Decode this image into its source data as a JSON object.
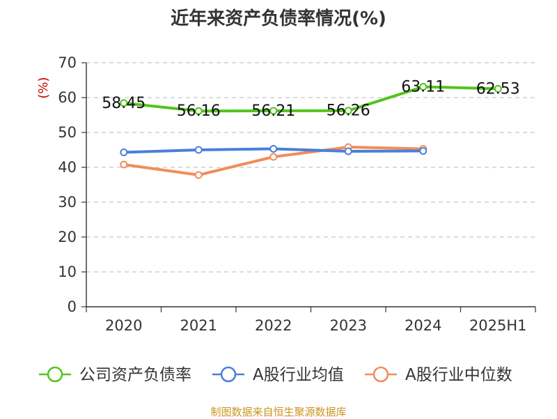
{
  "title": "近年来资产负债率情况(%)",
  "source": "制图数据来自恒生聚源数据库",
  "chart_data": {
    "type": "line",
    "title": "近年来资产负债率情况(%)",
    "ylabel": "(%)",
    "xlabel": "",
    "categories": [
      "2020",
      "2021",
      "2022",
      "2023",
      "2024",
      "2025H1"
    ],
    "ylim": [
      0,
      70
    ],
    "yticks": [
      0,
      10,
      20,
      30,
      40,
      50,
      60,
      70
    ],
    "grid": "horizontal dashed",
    "legend_position": "bottom",
    "series": [
      {
        "name": "公司资产负债率",
        "color": "#52c41a",
        "values": [
          58.45,
          56.16,
          56.21,
          56.26,
          63.11,
          62.53
        ],
        "labels": [
          "58.45",
          "56.16",
          "56.21",
          "56.26",
          "63.11",
          "62.53"
        ]
      },
      {
        "name": "A股行业均值",
        "color": "#4a7fd9",
        "values": [
          44.3,
          45.0,
          45.3,
          44.6,
          44.7,
          null
        ]
      },
      {
        "name": "A股行业中位数",
        "color": "#f28c5a",
        "values": [
          40.8,
          37.8,
          43.0,
          45.8,
          45.3,
          null
        ]
      }
    ]
  }
}
